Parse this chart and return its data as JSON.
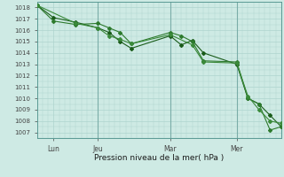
{
  "title": "",
  "xlabel": "Pression niveau de la mer( hPa )",
  "ylim": [
    1006.5,
    1018.5
  ],
  "xlim": [
    0,
    22
  ],
  "background_color": "#ceeae4",
  "grid_color": "#aed4ce",
  "line_color": "#1a5c1a",
  "line_color2": "#2d7a2d",
  "line_color3": "#3a8a3a",
  "xtick_positions": [
    1.5,
    5.5,
    12,
    18
  ],
  "xtick_labels": [
    "Lun",
    "Jeu",
    "Mar",
    "Mer"
  ],
  "ytick_positions": [
    1007,
    1008,
    1009,
    1010,
    1011,
    1012,
    1013,
    1014,
    1015,
    1016,
    1017,
    1018
  ],
  "series1_x": [
    0,
    1.5,
    3.5,
    5.5,
    6.5,
    7.5,
    8.5,
    12,
    13,
    14,
    15,
    18,
    19,
    20,
    21,
    22
  ],
  "series1_y": [
    1018.2,
    1017.1,
    1016.7,
    1016.2,
    1015.8,
    1015.0,
    1014.4,
    1015.5,
    1014.7,
    1015.1,
    1014.0,
    1013.0,
    1010.0,
    1009.5,
    1008.5,
    1007.5
  ],
  "series2_x": [
    0,
    1.5,
    3.5,
    5.5,
    6.5,
    7.5,
    8.5,
    12,
    13,
    14,
    15,
    18,
    19,
    20,
    21,
    22
  ],
  "series2_y": [
    1018.2,
    1016.8,
    1016.5,
    1016.6,
    1016.2,
    1015.8,
    1014.8,
    1015.8,
    1015.5,
    1015.0,
    1013.3,
    1013.2,
    1010.0,
    1009.5,
    1007.2,
    1007.5
  ],
  "series3_x": [
    0,
    3.5,
    5.5,
    6.5,
    7.5,
    8.5,
    12,
    14,
    15,
    18,
    19,
    20,
    21,
    22
  ],
  "series3_y": [
    1018.2,
    1016.6,
    1016.2,
    1015.5,
    1015.2,
    1014.8,
    1015.6,
    1014.7,
    1013.2,
    1013.1,
    1010.2,
    1009.0,
    1008.0,
    1007.8
  ],
  "vline_positions": [
    5.5,
    12,
    18
  ]
}
